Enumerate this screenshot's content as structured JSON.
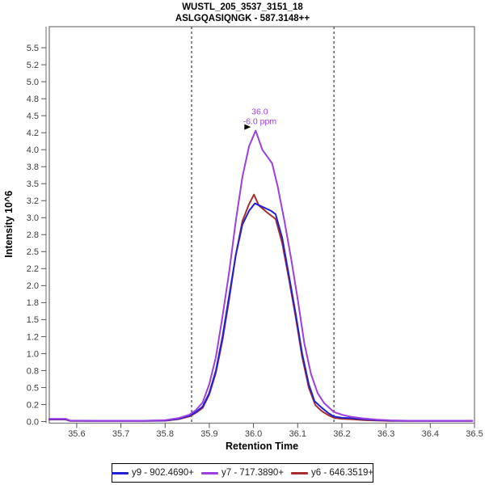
{
  "window": {
    "title_line1": "WUSTL_205_3537_3151_18",
    "title_line2": "ASLGQASIQNGK - 587.3148++"
  },
  "chart_data": {
    "type": "line",
    "title": "WUSTL_205_3537_3151_18",
    "subtitle": "ASLGQASIQNGK - 587.3148++",
    "xlabel": "Retention Time",
    "ylabel": "Intensity 10^6",
    "xlim": [
      35.538,
      36.5
    ],
    "ylim": [
      0,
      5.81
    ],
    "grid": false,
    "legend_position": "bottom",
    "x_tick_values": [
      35.6,
      35.7,
      35.8,
      35.9,
      36.0,
      36.1,
      36.2,
      36.3,
      36.4,
      36.5
    ],
    "x_tick_labels": [
      "35.6",
      "35.7",
      "35.8",
      "35.9",
      "36.0",
      "36.1",
      "36.2",
      "36.3",
      "36.4",
      "36.5"
    ],
    "y_tick_values": [
      0,
      0.25,
      0.5,
      0.75,
      1.0,
      1.25,
      1.5,
      1.75,
      2.0,
      2.25,
      2.5,
      2.75,
      3.0,
      3.25,
      3.5,
      3.75,
      4.0,
      4.25,
      4.5,
      4.75,
      5.0,
      5.25,
      5.5
    ],
    "y_tick_labels": [
      "0.0",
      "0.2",
      "0.5",
      "0.8",
      "1.0",
      "1.2",
      "1.5",
      "1.8",
      "2.0",
      "2.2",
      "2.5",
      "2.8",
      "3.0",
      "3.2",
      "3.5",
      "3.8",
      "4.0",
      "4.2",
      "4.5",
      "4.8",
      "5.0",
      "5.2",
      "5.5"
    ],
    "peak_boundaries": [
      35.86,
      36.182
    ],
    "boundary_color": "#3c3c3c",
    "annotation": {
      "line1": "36.0",
      "line2": "-6.0 ppm",
      "rt": 36.005,
      "intensity": 4.28,
      "color": "#9b3fe0",
      "marker_color": "#000000"
    },
    "series": [
      {
        "name": "y9 - 902.4690+",
        "color": "#2121cf",
        "points": [
          [
            35.538,
            0.035
          ],
          [
            35.575,
            0.035
          ],
          [
            35.585,
            0.012
          ],
          [
            35.65,
            0.01
          ],
          [
            35.75,
            0.01
          ],
          [
            35.8,
            0.015
          ],
          [
            35.83,
            0.04
          ],
          [
            35.855,
            0.085
          ],
          [
            35.87,
            0.14
          ],
          [
            35.885,
            0.22
          ],
          [
            35.9,
            0.42
          ],
          [
            35.915,
            0.75
          ],
          [
            35.93,
            1.25
          ],
          [
            35.945,
            1.85
          ],
          [
            35.96,
            2.45
          ],
          [
            35.975,
            2.9
          ],
          [
            35.99,
            3.1
          ],
          [
            36.003,
            3.21
          ],
          [
            36.02,
            3.16
          ],
          [
            36.04,
            3.1
          ],
          [
            36.05,
            3.05
          ],
          [
            36.065,
            2.7
          ],
          [
            36.08,
            2.15
          ],
          [
            36.095,
            1.6
          ],
          [
            36.11,
            1.0
          ],
          [
            36.125,
            0.55
          ],
          [
            36.138,
            0.3
          ],
          [
            36.155,
            0.2
          ],
          [
            36.17,
            0.12
          ],
          [
            36.182,
            0.075
          ],
          [
            36.2,
            0.055
          ],
          [
            36.22,
            0.05
          ],
          [
            36.25,
            0.035
          ],
          [
            36.28,
            0.02
          ],
          [
            36.31,
            0.013
          ],
          [
            36.35,
            0.01
          ],
          [
            36.42,
            0.01
          ],
          [
            36.495,
            0.01
          ]
        ]
      },
      {
        "name": "y7 - 717.3890+",
        "color": "#9b3fe0",
        "points": [
          [
            35.538,
            0.04
          ],
          [
            35.575,
            0.04
          ],
          [
            35.585,
            0.015
          ],
          [
            35.65,
            0.012
          ],
          [
            35.75,
            0.012
          ],
          [
            35.8,
            0.02
          ],
          [
            35.83,
            0.05
          ],
          [
            35.855,
            0.1
          ],
          [
            35.87,
            0.17
          ],
          [
            35.885,
            0.28
          ],
          [
            35.9,
            0.55
          ],
          [
            35.915,
            0.95
          ],
          [
            35.93,
            1.55
          ],
          [
            35.945,
            2.2
          ],
          [
            35.96,
            2.95
          ],
          [
            35.975,
            3.6
          ],
          [
            35.99,
            4.05
          ],
          [
            36.005,
            4.28
          ],
          [
            36.02,
            4.0
          ],
          [
            36.042,
            3.8
          ],
          [
            36.055,
            3.45
          ],
          [
            36.07,
            2.95
          ],
          [
            36.085,
            2.4
          ],
          [
            36.1,
            1.8
          ],
          [
            36.115,
            1.15
          ],
          [
            36.13,
            0.7
          ],
          [
            36.145,
            0.42
          ],
          [
            36.16,
            0.27
          ],
          [
            36.182,
            0.14
          ],
          [
            36.2,
            0.1
          ],
          [
            36.22,
            0.07
          ],
          [
            36.25,
            0.045
          ],
          [
            36.28,
            0.028
          ],
          [
            36.31,
            0.018
          ],
          [
            36.35,
            0.012
          ],
          [
            36.42,
            0.012
          ],
          [
            36.495,
            0.012
          ]
        ]
      },
      {
        "name": "y6 - 646.3519+",
        "color": "#a52f2f",
        "points": [
          [
            35.538,
            0.03
          ],
          [
            35.575,
            0.03
          ],
          [
            35.585,
            0.01
          ],
          [
            35.65,
            0.008
          ],
          [
            35.75,
            0.008
          ],
          [
            35.8,
            0.012
          ],
          [
            35.83,
            0.035
          ],
          [
            35.855,
            0.075
          ],
          [
            35.87,
            0.13
          ],
          [
            35.885,
            0.2
          ],
          [
            35.9,
            0.4
          ],
          [
            35.915,
            0.72
          ],
          [
            35.93,
            1.2
          ],
          [
            35.945,
            1.8
          ],
          [
            35.96,
            2.45
          ],
          [
            35.975,
            2.95
          ],
          [
            35.99,
            3.2
          ],
          [
            36.001,
            3.34
          ],
          [
            36.012,
            3.18
          ],
          [
            36.03,
            3.08
          ],
          [
            36.05,
            2.98
          ],
          [
            36.065,
            2.62
          ],
          [
            36.08,
            2.1
          ],
          [
            36.095,
            1.55
          ],
          [
            36.11,
            0.95
          ],
          [
            36.125,
            0.5
          ],
          [
            36.14,
            0.24
          ],
          [
            36.155,
            0.15
          ],
          [
            36.17,
            0.09
          ],
          [
            36.182,
            0.055
          ],
          [
            36.2,
            0.04
          ],
          [
            36.22,
            0.035
          ],
          [
            36.25,
            0.022
          ],
          [
            36.28,
            0.014
          ],
          [
            36.31,
            0.01
          ],
          [
            36.35,
            0.008
          ],
          [
            36.42,
            0.008
          ],
          [
            36.495,
            0.008
          ]
        ]
      }
    ]
  },
  "colors": {
    "frame": "#878787",
    "axis": "#555555",
    "tick_text": "#3d3d3d",
    "title_text": "#000000",
    "legend_border": "#000000",
    "background": "#ffffff"
  }
}
